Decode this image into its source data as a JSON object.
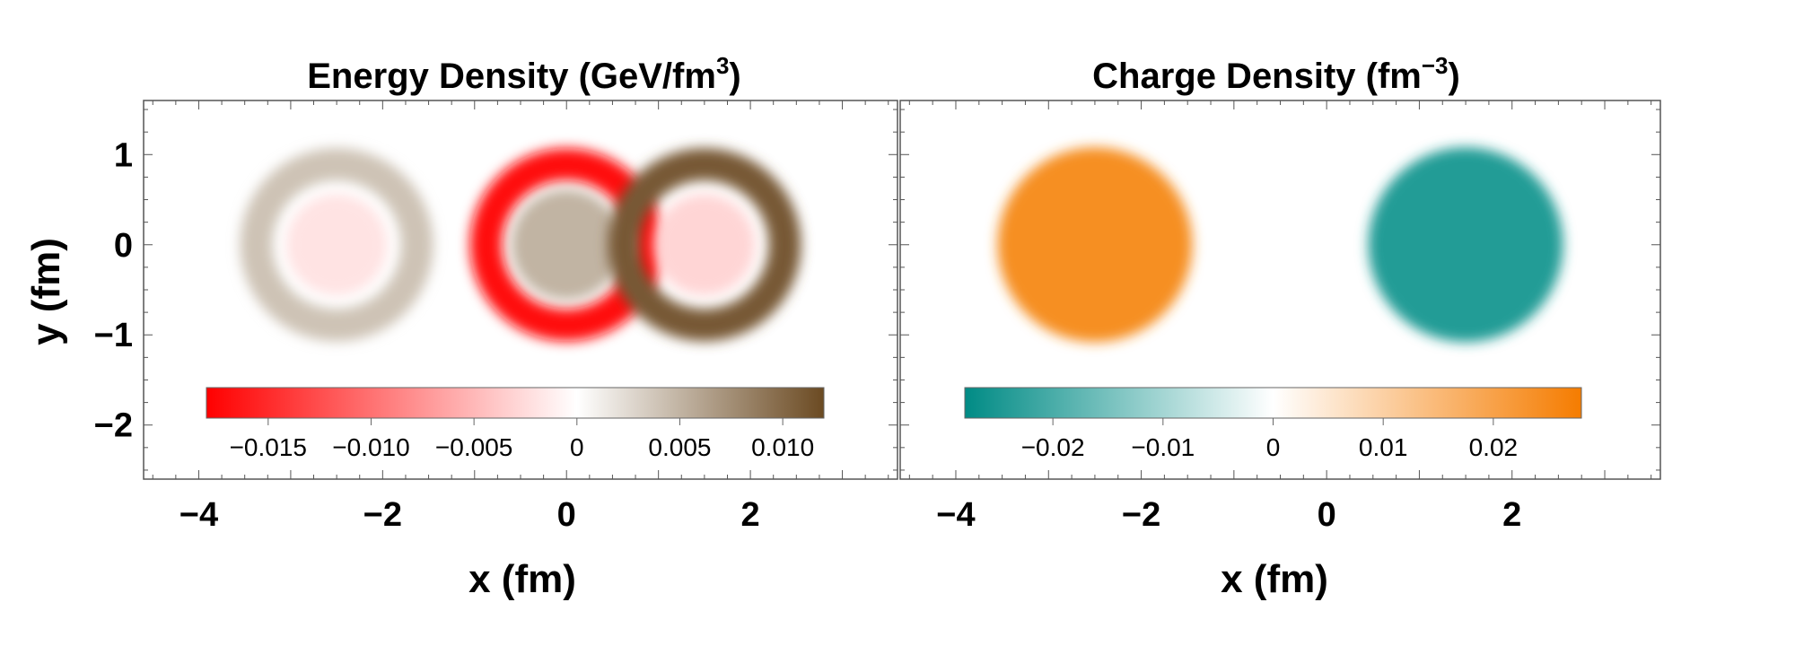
{
  "colors": {
    "red": "#ff0000",
    "brown": "#6b4a22",
    "teal": "#008b85",
    "orange": "#f57c00"
  },
  "chart_data": [
    {
      "type": "heatmap",
      "title": "Energy Density (GeV/fm",
      "title_superscript": "3",
      "title_suffix": ")",
      "xlabel": "x (fm)",
      "ylabel": "y (fm)",
      "xlim": [
        -4.6,
        3.6
      ],
      "ylim": [
        -2.6,
        1.6
      ],
      "x_ticks": [
        {
          "value": -4,
          "label": "−4"
        },
        {
          "value": -2,
          "label": "−2"
        },
        {
          "value": 0,
          "label": "0"
        },
        {
          "value": 2,
          "label": "2"
        }
      ],
      "y_ticks": [
        {
          "value": 1,
          "label": "1"
        },
        {
          "value": 0,
          "label": "0"
        },
        {
          "value": -1,
          "label": "−1"
        },
        {
          "value": -2,
          "label": "−2"
        }
      ],
      "colorbar": {
        "range": [
          -0.018,
          0.012
        ],
        "colors": [
          "#ff0000",
          "#ffffff",
          "#6b4a22"
        ],
        "ticks": [
          {
            "value": -0.015,
            "label": "−0.015"
          },
          {
            "value": -0.01,
            "label": "−0.010"
          },
          {
            "value": -0.005,
            "label": "−0.005"
          },
          {
            "value": 0,
            "label": "0"
          },
          {
            "value": 0.005,
            "label": "0.005"
          },
          {
            "value": 0.01,
            "label": "0.010"
          }
        ]
      },
      "features": [
        {
          "kind": "ring",
          "cx": -2.5,
          "cy": 0,
          "r_inner": 0.7,
          "r_outer": 1.05,
          "value": 0.004
        },
        {
          "kind": "disk",
          "cx": -2.5,
          "cy": 0,
          "r": 0.55,
          "value": -0.002
        },
        {
          "kind": "ring",
          "cx": 0,
          "cy": 0,
          "r_inner": 0.7,
          "r_outer": 1.05,
          "value": -0.017
        },
        {
          "kind": "disk",
          "cx": 0,
          "cy": 0,
          "r": 0.6,
          "value": 0.005
        },
        {
          "kind": "ring",
          "cx": 1.5,
          "cy": 0,
          "r_inner": 0.7,
          "r_outer": 1.05,
          "value": 0.011
        },
        {
          "kind": "disk",
          "cx": 1.5,
          "cy": 0,
          "r": 0.55,
          "value": -0.003
        }
      ]
    },
    {
      "type": "heatmap",
      "title": "Charge Density (fm",
      "title_superscript": "−3",
      "title_suffix": ")",
      "xlabel": "x (fm)",
      "ylabel": "",
      "xlim": [
        -4.6,
        3.6
      ],
      "ylim": [
        -2.6,
        1.6
      ],
      "x_ticks": [
        {
          "value": -4,
          "label": "−4"
        },
        {
          "value": -2,
          "label": "−2"
        },
        {
          "value": 0,
          "label": "0"
        },
        {
          "value": 2,
          "label": "2"
        }
      ],
      "colorbar": {
        "range": [
          -0.028,
          0.028
        ],
        "colors": [
          "#008b85",
          "#ffffff",
          "#f57c00"
        ],
        "ticks": [
          {
            "value": -0.02,
            "label": "−0.02"
          },
          {
            "value": -0.01,
            "label": "−0.01"
          },
          {
            "value": 0,
            "label": "0"
          },
          {
            "value": 0.01,
            "label": "0.01"
          },
          {
            "value": 0.02,
            "label": "0.02"
          }
        ]
      },
      "features": [
        {
          "kind": "disk",
          "cx": -2.5,
          "cy": 0,
          "r": 1.05,
          "value": 0.024
        },
        {
          "kind": "disk",
          "cx": 1.5,
          "cy": 0,
          "r": 1.05,
          "value": -0.024
        }
      ]
    }
  ]
}
